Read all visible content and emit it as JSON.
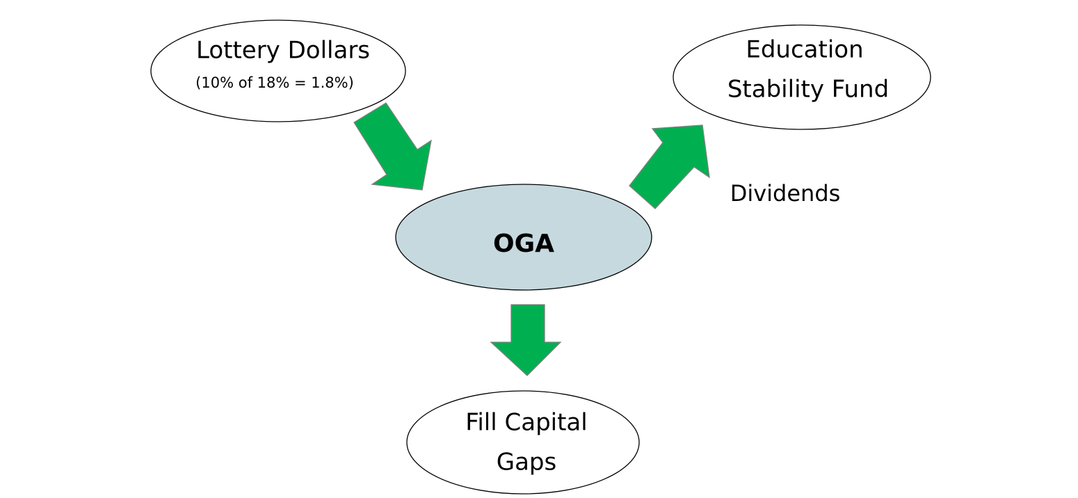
{
  "nodes": [
    {
      "lines": [
        "Lottery Dollars",
        "(10% of 18% = 1.8%)"
      ]
    },
    {
      "lines": [
        "Education",
        "Stability Fund"
      ]
    },
    {
      "lines": [
        "OGA"
      ]
    },
    {
      "lines": [
        "Fill Capital",
        "Gaps"
      ]
    }
  ],
  "edge_label": "Dividends"
}
